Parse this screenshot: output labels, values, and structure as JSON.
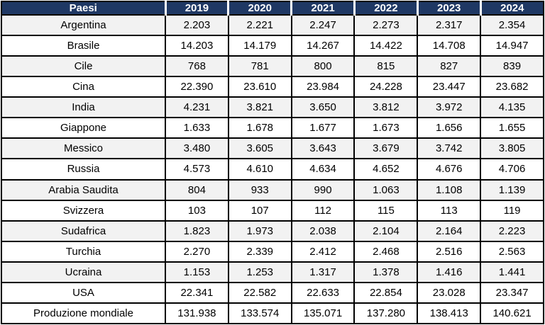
{
  "table": {
    "corner_label": "Paesi",
    "years": [
      "2019",
      "2020",
      "2021",
      "2022",
      "2023",
      "2024"
    ],
    "countries": [
      {
        "name": "Argentina",
        "values": [
          "2.203",
          "2.221",
          "2.247",
          "2.273",
          "2.317",
          "2.354"
        ]
      },
      {
        "name": "Brasile",
        "values": [
          "14.203",
          "14.179",
          "14.267",
          "14.422",
          "14.708",
          "14.947"
        ]
      },
      {
        "name": "Cile",
        "values": [
          "768",
          "781",
          "800",
          "815",
          "827",
          "839"
        ]
      },
      {
        "name": "Cina",
        "values": [
          "22.390",
          "23.610",
          "23.984",
          "24.228",
          "23.447",
          "23.682"
        ]
      },
      {
        "name": "India",
        "values": [
          "4.231",
          "3.821",
          "3.650",
          "3.812",
          "3.972",
          "4.135"
        ]
      },
      {
        "name": "Giappone",
        "values": [
          "1.633",
          "1.678",
          "1.677",
          "1.673",
          "1.656",
          "1.655"
        ]
      },
      {
        "name": "Messico",
        "values": [
          "3.480",
          "3.605",
          "3.643",
          "3.679",
          "3.742",
          "3.805"
        ]
      },
      {
        "name": "Russia",
        "values": [
          "4.573",
          "4.610",
          "4.634",
          "4.652",
          "4.676",
          "4.706"
        ]
      },
      {
        "name": "Arabia Saudita",
        "values": [
          "804",
          "933",
          "990",
          "1.063",
          "1.108",
          "1.139"
        ]
      },
      {
        "name": "Svizzera",
        "values": [
          "103",
          "107",
          "112",
          "115",
          "113",
          "119"
        ]
      },
      {
        "name": "Sudafrica",
        "values": [
          "1.823",
          "1.973",
          "2.038",
          "2.104",
          "2.164",
          "2.223"
        ]
      },
      {
        "name": "Turchia",
        "values": [
          "2.270",
          "2.339",
          "2.412",
          "2.468",
          "2.516",
          "2.563"
        ]
      },
      {
        "name": "Ucraina",
        "values": [
          "1.153",
          "1.253",
          "1.317",
          "1.378",
          "1.416",
          "1.441"
        ]
      },
      {
        "name": "USA",
        "values": [
          "22.341",
          "22.582",
          "22.633",
          "22.854",
          "23.028",
          "23.347"
        ]
      }
    ],
    "total": {
      "name": "Produzione mondiale",
      "values": [
        "131.938",
        "133.574",
        "135.071",
        "137.280",
        "138.413",
        "140.621"
      ]
    },
    "colors": {
      "header_bg": "#1F3864",
      "header_text": "#FFFFFF",
      "stripe_bg": "#F2F2F2",
      "row_bg": "#FFFFFF",
      "border": "#000000",
      "header_separator": "#FFFFFF"
    }
  },
  "chart_data": {
    "type": "table",
    "title": "",
    "columns": [
      "Paesi",
      "2019",
      "2020",
      "2021",
      "2022",
      "2023",
      "2024"
    ],
    "rows": [
      {
        "label": "Argentina",
        "values": [
          2203,
          2221,
          2247,
          2273,
          2317,
          2354
        ]
      },
      {
        "label": "Brasile",
        "values": [
          14203,
          14179,
          14267,
          14422,
          14708,
          14947
        ]
      },
      {
        "label": "Cile",
        "values": [
          768,
          781,
          800,
          815,
          827,
          839
        ]
      },
      {
        "label": "Cina",
        "values": [
          22390,
          23610,
          23984,
          24228,
          23447,
          23682
        ]
      },
      {
        "label": "India",
        "values": [
          4231,
          3821,
          3650,
          3812,
          3972,
          4135
        ]
      },
      {
        "label": "Giappone",
        "values": [
          1633,
          1678,
          1677,
          1673,
          1656,
          1655
        ]
      },
      {
        "label": "Messico",
        "values": [
          3480,
          3605,
          3643,
          3679,
          3742,
          3805
        ]
      },
      {
        "label": "Russia",
        "values": [
          4573,
          4610,
          4634,
          4652,
          4676,
          4706
        ]
      },
      {
        "label": "Arabia Saudita",
        "values": [
          804,
          933,
          990,
          1063,
          1108,
          1139
        ]
      },
      {
        "label": "Svizzera",
        "values": [
          103,
          107,
          112,
          115,
          113,
          119
        ]
      },
      {
        "label": "Sudafrica",
        "values": [
          1823,
          1973,
          2038,
          2104,
          2164,
          2223
        ]
      },
      {
        "label": "Turchia",
        "values": [
          2270,
          2339,
          2412,
          2468,
          2516,
          2563
        ]
      },
      {
        "label": "Ucraina",
        "values": [
          1153,
          1253,
          1317,
          1378,
          1416,
          1441
        ]
      },
      {
        "label": "USA",
        "values": [
          22341,
          22582,
          22633,
          22854,
          23028,
          23347
        ]
      },
      {
        "label": "Produzione mondiale",
        "values": [
          131938,
          133574,
          135071,
          137280,
          138413,
          140621
        ]
      }
    ],
    "number_format": "it-IT thousands separator (dot)"
  }
}
